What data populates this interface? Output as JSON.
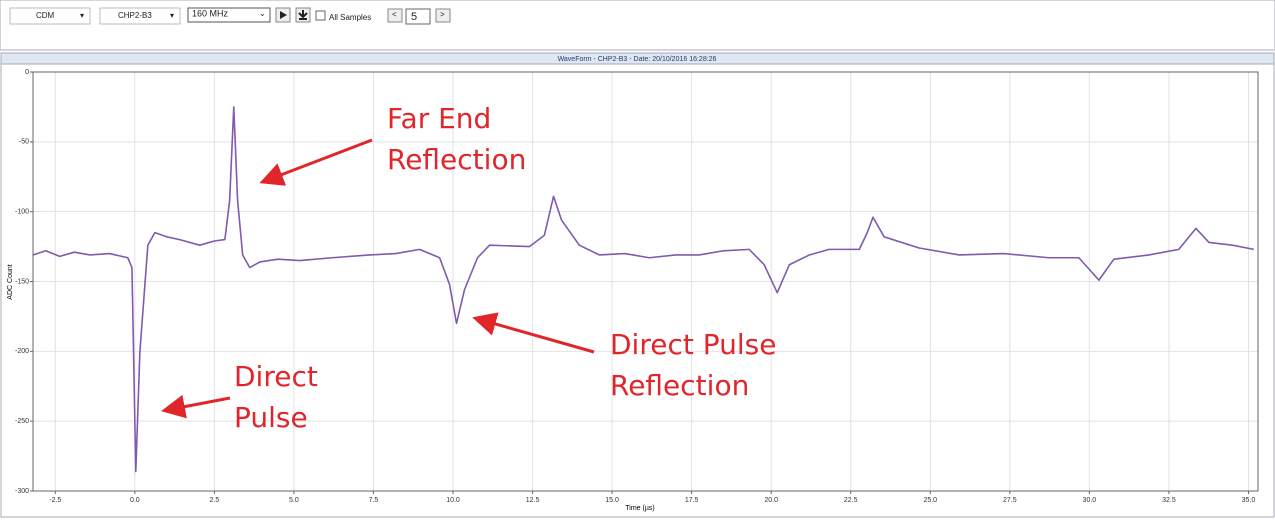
{
  "toolbar": {
    "mode": "CDM",
    "channel": "CHP2-B3",
    "sample_rate": "160 MHz",
    "all_samples": "All Samples",
    "page": 5
  },
  "chart_data": {
    "type": "line",
    "title": "WaveForm - CHP2-B3 - Date: 20/10/2016 16:28:26",
    "x_label": "Time (µs)",
    "y_label": "ADC Count",
    "x": [
      -3.2,
      -2.8,
      -2.36,
      -1.9,
      -1.41,
      -0.8,
      -0.22,
      -0.09,
      0.03,
      0.16,
      0.41,
      0.63,
      1.0,
      1.41,
      2.04,
      2.5,
      2.83,
      2.98,
      3.11,
      3.23,
      3.39,
      3.61,
      3.93,
      4.5,
      5.18,
      6.2,
      7.38,
      8.2,
      8.95,
      9.58,
      9.89,
      10.11,
      10.36,
      10.77,
      11.15,
      12.4,
      12.87,
      13.16,
      13.41,
      13.97,
      14.6,
      15.4,
      16.17,
      17.0,
      17.74,
      18.5,
      19.31,
      19.78,
      20.19,
      20.57,
      21.2,
      21.82,
      22.77,
      23.02,
      23.2,
      23.55,
      24.65,
      25.91,
      27.3,
      28.73,
      29.67,
      30.3,
      30.77,
      31.87,
      32.81,
      33.35,
      33.76,
      34.5,
      35.17
    ],
    "series": [
      {
        "name": "ADC Count",
        "color": "#7f5aae",
        "values": [
          -131,
          -128,
          -132,
          -129,
          -131,
          -130,
          -133,
          -140,
          -286,
          -200,
          -124,
          -115,
          -118,
          -120,
          -124,
          -121,
          -120,
          -92,
          -25,
          -92,
          -131,
          -140,
          -136,
          -134,
          -135,
          -133,
          -131,
          -130,
          -127,
          -133,
          -152,
          -180,
          -156,
          -133,
          -124,
          -125,
          -117,
          -89,
          -106,
          -124,
          -131,
          -130,
          -133,
          -131,
          -131,
          -128,
          -127,
          -138,
          -158,
          -138,
          -131,
          -127,
          -127,
          -115,
          -104,
          -118,
          -126,
          -131,
          -130,
          -133,
          -133,
          -149,
          -134,
          -131,
          -127,
          -112,
          -122,
          -124,
          -127
        ]
      }
    ],
    "xlim": [
      -3.2,
      35.3
    ],
    "ylim": [
      -300,
      0
    ],
    "xticks": [
      -2.5,
      {
        "value": 0,
        "label": "0.0"
      },
      2.5,
      {
        "value": 5,
        "label": "5.0"
      },
      7.5,
      {
        "value": 10,
        "label": "10.0"
      },
      12.5,
      {
        "value": 15,
        "label": "15.0"
      },
      17.5,
      {
        "value": 20,
        "label": "20.0"
      },
      22.5,
      {
        "value": 25,
        "label": "25.0"
      },
      27.5,
      {
        "value": 30,
        "label": "30.0"
      },
      32.5,
      {
        "value": 35,
        "label": "35.0"
      }
    ],
    "yticks": [
      0,
      -50,
      -100,
      -150,
      -200,
      -250,
      -300
    ],
    "grid": true,
    "annotations": [
      {
        "lines": [
          "Far End",
          "Reflection"
        ]
      },
      {
        "lines": [
          "Direct",
          "Pulse"
        ]
      },
      {
        "lines": [
          "Direct Pulse",
          "Reflection"
        ]
      }
    ]
  }
}
